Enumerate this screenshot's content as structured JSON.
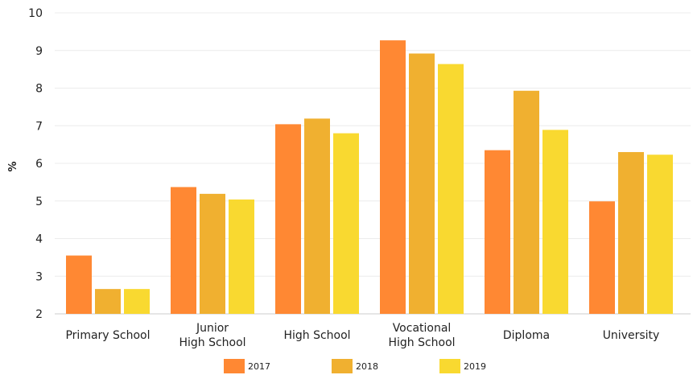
{
  "chart_data": {
    "type": "bar",
    "title": "",
    "xlabel": "",
    "ylabel": "%",
    "ylim": [
      2,
      10
    ],
    "yticks": [
      2,
      3,
      4,
      5,
      6,
      7,
      8,
      9,
      10
    ],
    "grid": true,
    "legend_position": "bottom",
    "categories": [
      [
        "Primary School"
      ],
      [
        "Junior",
        "High School"
      ],
      [
        "High School"
      ],
      [
        "Vocational",
        "High School"
      ],
      [
        "Diploma"
      ],
      [
        "University"
      ]
    ],
    "series": [
      {
        "name": "2017",
        "color": "#ff8833",
        "values": [
          3.55,
          5.37,
          7.04,
          9.27,
          6.35,
          4.99
        ]
      },
      {
        "name": "2018",
        "color": "#f0b030",
        "values": [
          2.66,
          5.19,
          7.19,
          8.92,
          7.93,
          6.3
        ]
      },
      {
        "name": "2019",
        "color": "#f9d930",
        "values": [
          2.66,
          5.04,
          6.8,
          8.64,
          6.89,
          6.23
        ]
      }
    ]
  }
}
